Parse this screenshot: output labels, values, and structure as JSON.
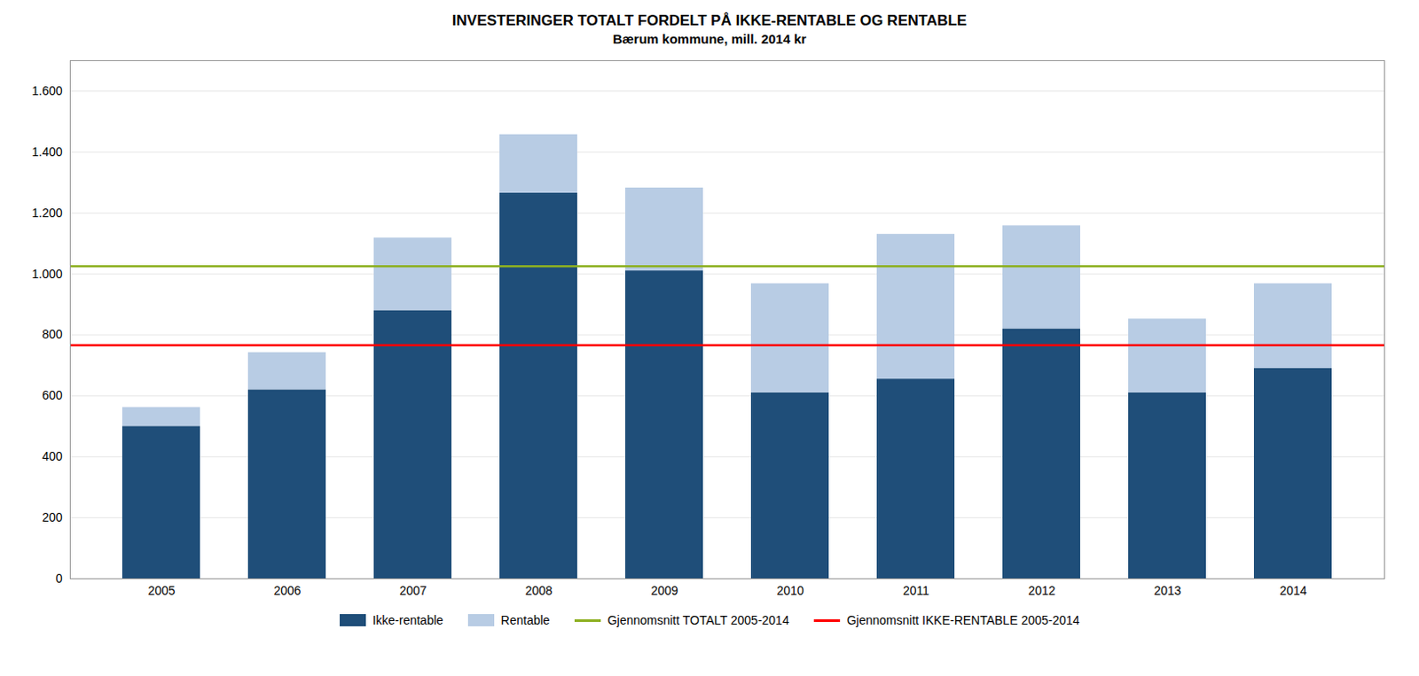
{
  "chart_data": {
    "type": "bar",
    "stacked": true,
    "title": "INVESTERINGER TOTALT FORDELT PÅ IKKE-RENTABLE OG RENTABLE",
    "subtitle": "Bærum kommune, mill. 2014 kr",
    "categories": [
      "2005",
      "2006",
      "2007",
      "2008",
      "2009",
      "2010",
      "2011",
      "2012",
      "2013",
      "2014"
    ],
    "series": [
      {
        "name": "Ikke-rentable",
        "color": "#1F4E79",
        "values": [
          500,
          620,
          880,
          1265,
          1010,
          610,
          655,
          820,
          610,
          690
        ]
      },
      {
        "name": "Rentable",
        "color": "#B8CCE4",
        "values": [
          62,
          122,
          238,
          192,
          272,
          358,
          475,
          338,
          242,
          278
        ]
      }
    ],
    "reference_lines": [
      {
        "name": "Gjennomsnitt TOTALT 2005-2014",
        "color": "#8DB021",
        "value": 1025
      },
      {
        "name": "Gjennomsnitt IKKE-RENTABLE 2005-2014",
        "color": "#FF0000",
        "value": 766
      }
    ],
    "ylim": [
      0,
      1700
    ],
    "yticks": [
      0,
      200,
      400,
      600,
      800,
      {
        "value": 1000,
        "label": "1.000"
      },
      {
        "value": 1200,
        "label": "1.200"
      },
      {
        "value": 1400,
        "label": "1.400"
      },
      {
        "value": 1600,
        "label": "1.600"
      }
    ],
    "grid": true,
    "legend": "bottom"
  }
}
